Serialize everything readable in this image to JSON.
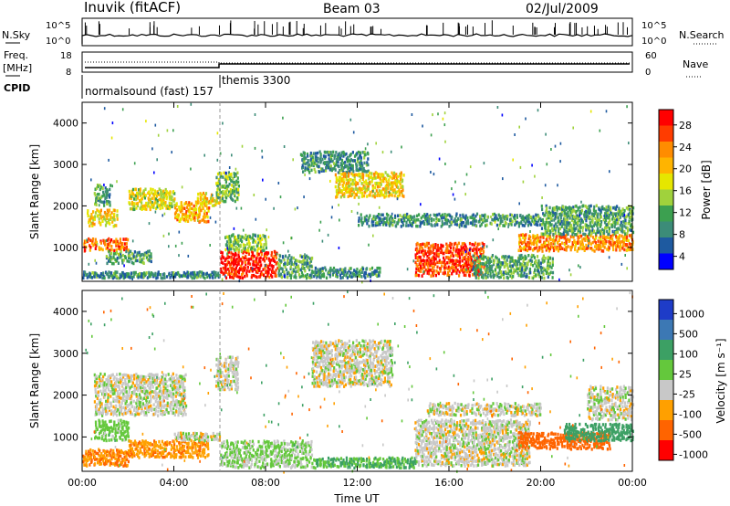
{
  "header": {
    "station": "Inuvik (fitACF)",
    "beam": "Beam 03",
    "date": "02/Jul/2009"
  },
  "top_panels": {
    "nsky_label": "N.Sky",
    "nsky_ticks": [
      "10^5",
      "10^0"
    ],
    "nsearch_ticks": [
      "10^5",
      "10^0"
    ],
    "nsearch_label": "N.Search",
    "freq_label": "Freq.",
    "freq_unit": "[MHz]",
    "freq_ticks": [
      "18",
      "8"
    ],
    "nave_ticks": [
      "60",
      "0"
    ],
    "nave_label": "Nave",
    "cpid_label": "CPID",
    "cpid_segments": [
      {
        "label": "normalsound (fast) 157",
        "start_hour": 0,
        "end_hour": 6
      },
      {
        "label": "themis 3300",
        "start_hour": 6,
        "end_hour": 24
      }
    ]
  },
  "x_axis": {
    "label": "Time UT",
    "ticks": [
      "00:00",
      "04:00",
      "08:00",
      "12:00",
      "16:00",
      "20:00",
      "00:00"
    ]
  },
  "power_colorbar": {
    "label": "Power [dB]",
    "ticks": [
      "28",
      "24",
      "20",
      "16",
      "12",
      "8",
      "4"
    ],
    "colors": [
      "#ff0000",
      "#ff3c00",
      "#ff8c00",
      "#ffb400",
      "#e6e600",
      "#a0d23c",
      "#3ca050",
      "#3c8c78",
      "#1e5aa0",
      "#0000ff"
    ]
  },
  "velocity_colorbar": {
    "label": "Velocity [m s⁻¹]",
    "ticks": [
      "1000",
      "500",
      "100",
      "25",
      "-25",
      "-100",
      "-500",
      "-1000"
    ],
    "colors": [
      "#1e3cc8",
      "#3c78b4",
      "#3ca064",
      "#64c83c",
      "#c8c8c8",
      "#ffa000",
      "#ff6400",
      "#ff0000"
    ]
  },
  "chart_data": {
    "type": "heatmap",
    "title": "Inuvik (fitACF) Beam 03 02/Jul/2009",
    "xlabel": "Time UT",
    "xlim": [
      0,
      24
    ],
    "panels": [
      {
        "name": "Power",
        "ylabel": "Slant Range [km]",
        "ylim": [
          180,
          4500
        ],
        "yticks": [
          1000,
          2000,
          3000,
          4000
        ],
        "colorbar": "Power [dB]",
        "clim": [
          0,
          30
        ],
        "regions": [
          {
            "t": [
              0.0,
              6.0
            ],
            "r": [
              250,
              400
            ],
            "v": 8
          },
          {
            "t": [
              0.0,
              2.0
            ],
            "r": [
              900,
              1200
            ],
            "v": 24
          },
          {
            "t": [
              0.2,
              1.5
            ],
            "r": [
              1500,
              1900
            ],
            "v": 18
          },
          {
            "t": [
              0.5,
              1.2
            ],
            "r": [
              2000,
              2500
            ],
            "v": 10
          },
          {
            "t": [
              1.0,
              3.0
            ],
            "r": [
              600,
              900
            ],
            "v": 10
          },
          {
            "t": [
              2.0,
              4.0
            ],
            "r": [
              1900,
              2400
            ],
            "v": 16
          },
          {
            "t": [
              4.0,
              5.5
            ],
            "r": [
              1600,
              2100
            ],
            "v": 20
          },
          {
            "t": [
              5.0,
              6.0
            ],
            "r": [
              2000,
              2300
            ],
            "v": 18
          },
          {
            "t": [
              5.8,
              6.8
            ],
            "r": [
              2100,
              2800
            ],
            "v": 12
          },
          {
            "t": [
              6.0,
              8.5
            ],
            "r": [
              250,
              900
            ],
            "v": 28
          },
          {
            "t": [
              6.2,
              8.0
            ],
            "r": [
              900,
              1300
            ],
            "v": 12
          },
          {
            "t": [
              8.5,
              10.0
            ],
            "r": [
              250,
              800
            ],
            "v": 10
          },
          {
            "t": [
              10.0,
              13.0
            ],
            "r": [
              250,
              500
            ],
            "v": 8
          },
          {
            "t": [
              9.5,
              12.5
            ],
            "r": [
              2800,
              3300
            ],
            "v": 8
          },
          {
            "t": [
              11.0,
              14.0
            ],
            "r": [
              2200,
              2800
            ],
            "v": 18
          },
          {
            "t": [
              12.0,
              20.0
            ],
            "r": [
              1500,
              1800
            ],
            "v": 8
          },
          {
            "t": [
              14.5,
              17.5
            ],
            "r": [
              300,
              1100
            ],
            "v": 26
          },
          {
            "t": [
              17.0,
              20.5
            ],
            "r": [
              250,
              800
            ],
            "v": 10
          },
          {
            "t": [
              19.0,
              24.0
            ],
            "r": [
              900,
              1300
            ],
            "v": 22
          },
          {
            "t": [
              20.0,
              24.0
            ],
            "r": [
              1300,
              2000
            ],
            "v": 10
          }
        ]
      },
      {
        "name": "Velocity",
        "ylabel": "Slant Range [km]",
        "ylim": [
          180,
          4500
        ],
        "yticks": [
          1000,
          2000,
          3000,
          4000
        ],
        "colorbar": "Velocity [m s⁻¹]",
        "clim": [
          -1000,
          1000
        ],
        "regions": [
          {
            "t": [
              0.0,
              2.0
            ],
            "r": [
              300,
              700
            ],
            "v": -100
          },
          {
            "t": [
              0.5,
              2.0
            ],
            "r": [
              900,
              1400
            ],
            "v": 50
          },
          {
            "t": [
              0.5,
              4.5
            ],
            "r": [
              1500,
              2500
            ],
            "v": 0
          },
          {
            "t": [
              2.0,
              5.5
            ],
            "r": [
              500,
              900
            ],
            "v": -80
          },
          {
            "t": [
              4.0,
              6.0
            ],
            "r": [
              900,
              1100
            ],
            "v": 0
          },
          {
            "t": [
              5.8,
              6.8
            ],
            "r": [
              2100,
              2900
            ],
            "v": 0
          },
          {
            "t": [
              6.0,
              10.0
            ],
            "r": [
              250,
              900
            ],
            "v": 30
          },
          {
            "t": [
              10.0,
              14.5
            ],
            "r": [
              250,
              500
            ],
            "v": 100
          },
          {
            "t": [
              10.0,
              13.5
            ],
            "r": [
              2200,
              3300
            ],
            "v": 0
          },
          {
            "t": [
              14.5,
              19.5
            ],
            "r": [
              300,
              1400
            ],
            "v": 0
          },
          {
            "t": [
              15.0,
              20.0
            ],
            "r": [
              1500,
              1800
            ],
            "v": 0
          },
          {
            "t": [
              19.0,
              23.0
            ],
            "r": [
              700,
              1100
            ],
            "v": -300
          },
          {
            "t": [
              21.0,
              24.0
            ],
            "r": [
              900,
              1300
            ],
            "v": 150
          },
          {
            "t": [
              22.0,
              24.0
            ],
            "r": [
              1400,
              2200
            ],
            "v": 0
          }
        ]
      }
    ]
  }
}
